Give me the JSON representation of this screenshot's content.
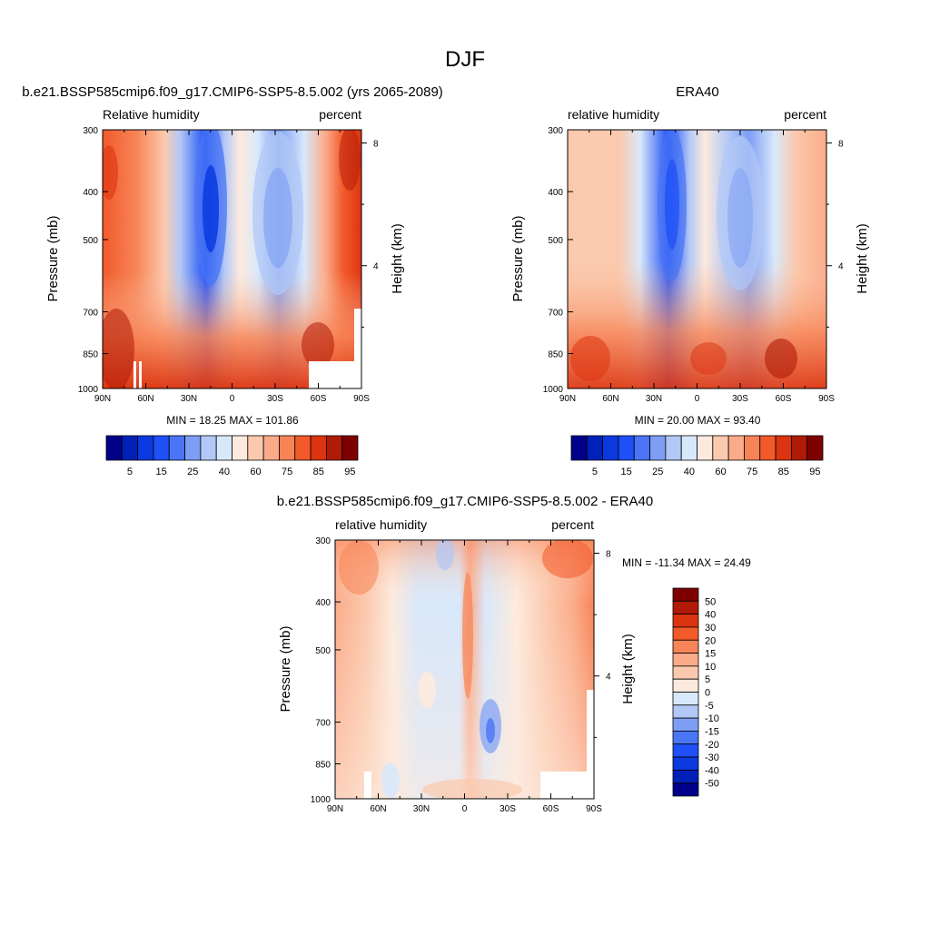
{
  "figure_title": "DJF",
  "chart_data": [
    {
      "type": "heatmap",
      "title": "b.e21.BSSP585cmip6.f09_g17.CMIP6-SSP5-8.5.002 (yrs 2065-2089)",
      "left_label": "Relative humidity",
      "right_label": "percent",
      "ylabel": "Pressure (mb)",
      "y2label": "Height (km)",
      "x_ticks": [
        "90N",
        "60N",
        "30N",
        "0",
        "30S",
        "60S",
        "90S"
      ],
      "y_ticks": [
        "300",
        "400",
        "500",
        "700",
        "850",
        "1000"
      ],
      "y2_ticks": [
        "8",
        "4"
      ],
      "stats": "MIN =  18.25  MAX = 101.86",
      "colorbar_labels": [
        "5",
        "15",
        "25",
        "40",
        "60",
        "75",
        "85",
        "95"
      ],
      "colorbar_colors": [
        "#00008b",
        "#0021b8",
        "#0b3ae0",
        "#1e4ff7",
        "#4a75f4",
        "#7d9ef4",
        "#b2c8f6",
        "#d8e8fb",
        "#fdeade",
        "#fbc9ad",
        "#fbab8a",
        "#f78456",
        "#f25a2a",
        "#dc3410",
        "#b01a07",
        "#7f0000"
      ],
      "humidity_profile": {
        "lat": [
          90,
          75,
          60,
          45,
          30,
          20,
          10,
          0,
          -10,
          -20,
          -30,
          -45,
          -60,
          -75,
          -90
        ],
        "pressure_mb": [
          300,
          400,
          500,
          700,
          850,
          1000
        ],
        "rh_percent": [
          [
            70,
            80,
            70,
            55,
            45,
            20,
            35,
            50,
            45,
            35,
            40,
            55,
            75,
            82,
            80
          ],
          [
            75,
            85,
            78,
            60,
            45,
            20,
            30,
            45,
            40,
            30,
            35,
            55,
            80,
            88,
            85
          ],
          [
            72,
            80,
            75,
            60,
            45,
            22,
            30,
            50,
            40,
            30,
            38,
            60,
            80,
            85,
            82
          ],
          [
            75,
            78,
            72,
            60,
            45,
            30,
            40,
            60,
            45,
            35,
            40,
            62,
            80,
            82,
            80
          ],
          [
            88,
            85,
            80,
            70,
            60,
            50,
            65,
            80,
            70,
            60,
            62,
            72,
            85,
            88,
            85
          ],
          [
            95,
            90,
            85,
            80,
            75,
            70,
            80,
            85,
            80,
            75,
            78,
            82,
            90,
            92,
            90
          ]
        ]
      }
    },
    {
      "type": "heatmap",
      "title": "ERA40",
      "left_label": "relative humidity",
      "right_label": "percent",
      "ylabel": "Pressure (mb)",
      "y2label": "Height (km)",
      "x_ticks": [
        "90N",
        "60N",
        "30N",
        "0",
        "30S",
        "60S",
        "90S"
      ],
      "y_ticks": [
        "300",
        "400",
        "500",
        "700",
        "850",
        "1000"
      ],
      "y2_ticks": [
        "8",
        "4"
      ],
      "stats": "MIN =  20.00  MAX =  93.40",
      "colorbar_labels": [
        "5",
        "15",
        "25",
        "40",
        "60",
        "75",
        "85",
        "95"
      ],
      "colorbar_colors": [
        "#00008b",
        "#0021b8",
        "#0b3ae0",
        "#1e4ff7",
        "#4a75f4",
        "#7d9ef4",
        "#b2c8f6",
        "#d8e8fb",
        "#fdeade",
        "#fbc9ad",
        "#fbab8a",
        "#f78456",
        "#f25a2a",
        "#dc3410",
        "#b01a07",
        "#7f0000"
      ]
    },
    {
      "type": "heatmap",
      "title": "b.e21.BSSP585cmip6.f09_g17.CMIP6-SSP5-8.5.002 - ERA40",
      "left_label": "relative humidity",
      "right_label": "percent",
      "ylabel": "Pressure (mb)",
      "y2label": "Height (km)",
      "x_ticks": [
        "90N",
        "60N",
        "30N",
        "0",
        "30S",
        "60S",
        "90S"
      ],
      "y_ticks": [
        "300",
        "400",
        "500",
        "700",
        "850",
        "1000"
      ],
      "y2_ticks": [
        "8",
        "4"
      ],
      "stats": "MIN = -11.34  MAX =  24.49",
      "colorbar_labels": [
        "50",
        "40",
        "30",
        "20",
        "15",
        "10",
        "5",
        "0",
        "-5",
        "-10",
        "-15",
        "-20",
        "-30",
        "-40",
        "-50"
      ],
      "colorbar_colors": [
        "#7f0000",
        "#b01a07",
        "#dc3410",
        "#f25a2a",
        "#f78456",
        "#fbab8a",
        "#fbc9ad",
        "#fdeade",
        "#d8e8fb",
        "#b2c8f6",
        "#7d9ef4",
        "#4a75f4",
        "#1e4ff7",
        "#0b3ae0",
        "#0021b8",
        "#00008b"
      ]
    }
  ]
}
